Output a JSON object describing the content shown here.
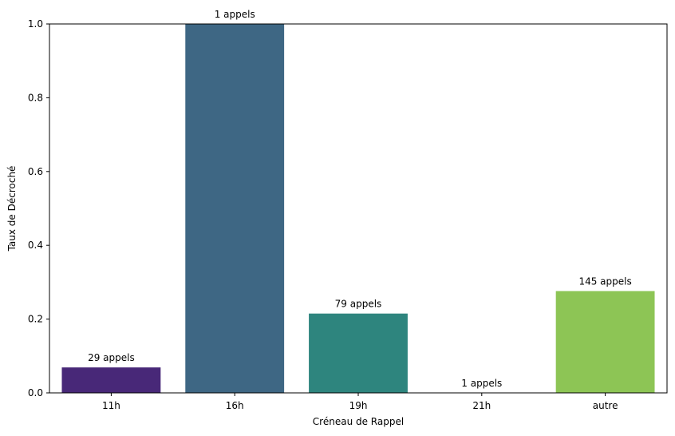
{
  "chart_data": {
    "type": "bar",
    "title": "",
    "xlabel": "Créneau de Rappel",
    "ylabel": "Taux de Décroché",
    "categories": [
      "11h",
      "16h",
      "19h",
      "21h",
      "autre"
    ],
    "values": [
      0.069,
      1.0,
      0.215,
      0.0,
      0.276
    ],
    "data_labels": [
      "29 appels",
      "1 appels",
      "79 appels",
      "1 appels",
      "145 appels"
    ],
    "colors": [
      "#482878",
      "#3e6784",
      "#2e857e",
      "#2e9a7c",
      "#8dc555"
    ],
    "ylim": [
      0,
      1.0
    ],
    "yticks": [
      0.0,
      0.2,
      0.4,
      0.6,
      0.8,
      1.0
    ],
    "ytick_labels": [
      "0.0",
      "0.2",
      "0.4",
      "0.6",
      "0.8",
      "1.0"
    ],
    "grid": false,
    "legend": "none"
  }
}
